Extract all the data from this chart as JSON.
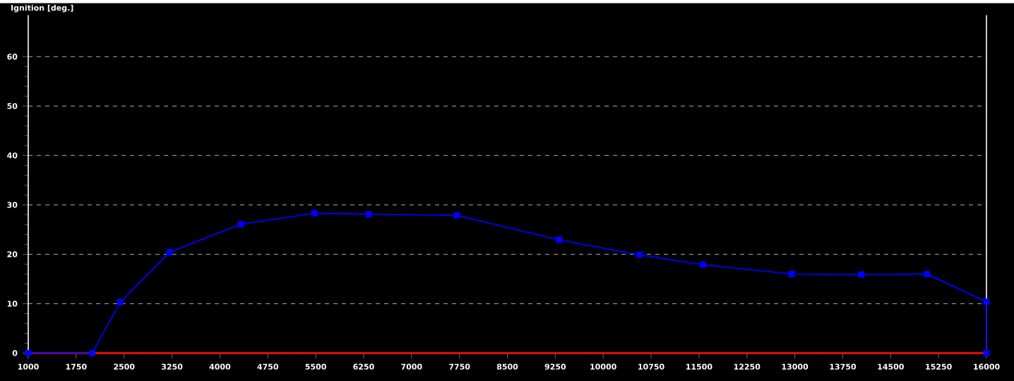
{
  "chart_data": {
    "type": "line",
    "ylabel": "Ignition [deg.]",
    "x": [
      1000,
      2000,
      2440,
      3210,
      4330,
      5480,
      6330,
      7710,
      9310,
      10570,
      11560,
      12950,
      14040,
      15070,
      16000,
      16000
    ],
    "series": [
      {
        "color": "#0000ff",
        "values": [
          0,
          0,
          10.3,
          20.4,
          26.1,
          28.3,
          28.1,
          27.9,
          22.9,
          19.9,
          17.9,
          16.0,
          15.9,
          16.0,
          10.4,
          0
        ]
      }
    ],
    "xlim": [
      1000,
      16000
    ],
    "ylim": [
      0,
      68.4
    ],
    "xticks": [
      1000,
      1750,
      2500,
      3250,
      4000,
      4750,
      5500,
      6250,
      7000,
      7750,
      8500,
      9250,
      10000,
      10750,
      11500,
      12250,
      13000,
      13750,
      14500,
      15250,
      16000
    ],
    "yticks": [
      0,
      10,
      20,
      30,
      40,
      50,
      60
    ],
    "grid": "y",
    "marker": "square",
    "line_style": "solid",
    "ref_lines": [
      {
        "axis": "y",
        "value": 0,
        "color": "#ff0000"
      },
      {
        "axis": "x",
        "value": 16000,
        "color": "#ffffff"
      }
    ]
  }
}
